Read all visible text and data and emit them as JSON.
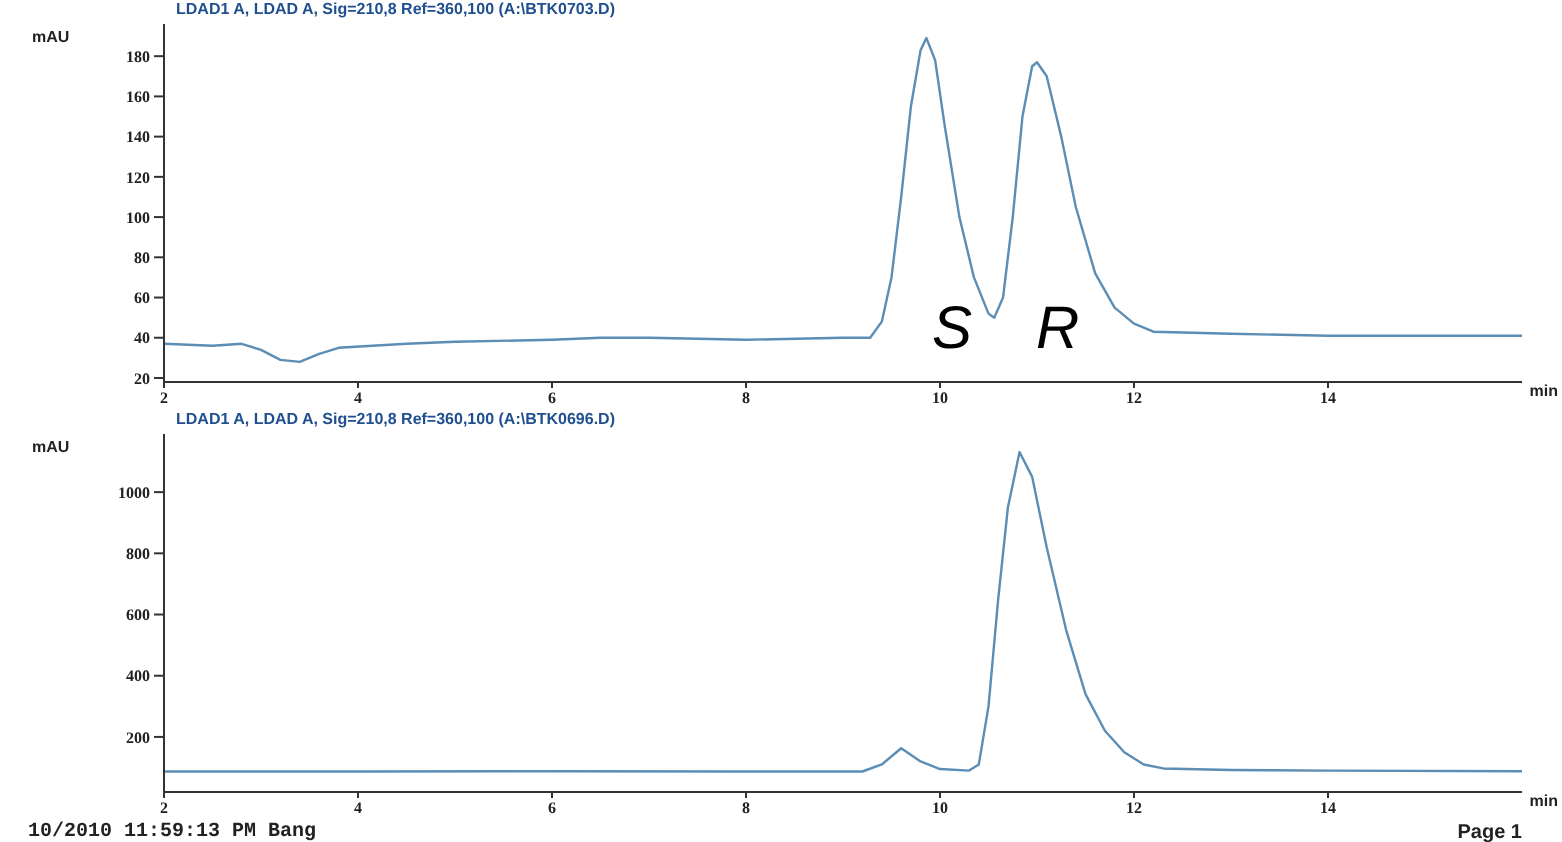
{
  "chart_data": [
    {
      "type": "line",
      "title": "LDAD1 A, LDAD A, Sig=210,8 Ref=360,100 (A:\\BTK0703.D)",
      "ylabel": "mAU",
      "xlabel": "min",
      "xlim": [
        2,
        16
      ],
      "xticks": [
        2,
        4,
        6,
        8,
        10,
        12,
        14
      ],
      "ylim": [
        18,
        196
      ],
      "yticks": [
        20,
        40,
        60,
        80,
        100,
        120,
        140,
        160,
        180
      ],
      "marker": "none",
      "annotations": [
        "S",
        "R"
      ],
      "series": [
        {
          "color": "#5b8db5",
          "x": [
            2,
            2.5,
            2.8,
            3.0,
            3.2,
            3.4,
            3.6,
            3.8,
            4.5,
            5,
            6,
            6.5,
            7,
            8,
            9,
            9.28,
            9.4,
            9.5,
            9.6,
            9.7,
            9.8,
            9.86,
            9.95,
            10.05,
            10.2,
            10.35,
            10.5,
            10.56,
            10.65,
            10.75,
            10.85,
            10.95,
            11.0,
            11.1,
            11.25,
            11.4,
            11.6,
            11.8,
            12.0,
            12.2,
            13,
            14,
            15,
            16
          ],
          "values": [
            37,
            36,
            37,
            34,
            29,
            28,
            32,
            35,
            37,
            38,
            39,
            40,
            40,
            39,
            40,
            40,
            48,
            70,
            110,
            155,
            183,
            189,
            178,
            145,
            100,
            70,
            52,
            50,
            60,
            100,
            150,
            175,
            177,
            170,
            140,
            105,
            72,
            55,
            47,
            43,
            42,
            41,
            41,
            41
          ]
        }
      ]
    },
    {
      "type": "line",
      "title": "LDAD1 A, LDAD A, Sig=210,8 Ref=360,100 (A:\\BTK0696.D)",
      "ylabel": "mAU",
      "xlabel": "min",
      "xlim": [
        2,
        16
      ],
      "xticks": [
        2,
        4,
        6,
        8,
        10,
        12,
        14
      ],
      "ylim": [
        20,
        1190
      ],
      "yticks": [
        200,
        400,
        600,
        800,
        1000
      ],
      "marker": "none",
      "annotations": [
        "10/2010 11:59:13 PM Bang",
        "Page 1"
      ],
      "series": [
        {
          "color": "#5b8db5",
          "x": [
            2,
            4,
            6,
            8,
            9.2,
            9.4,
            9.6,
            9.8,
            10.0,
            10.3,
            10.4,
            10.5,
            10.6,
            10.7,
            10.82,
            10.95,
            11.1,
            11.3,
            11.5,
            11.7,
            11.9,
            12.1,
            12.3,
            13,
            14,
            16
          ],
          "values": [
            87,
            87,
            88,
            87,
            87,
            110,
            163,
            120,
            95,
            90,
            110,
            300,
            650,
            950,
            1131,
            1050,
            820,
            550,
            340,
            220,
            150,
            110,
            97,
            92,
            90,
            88
          ]
        }
      ]
    }
  ]
}
